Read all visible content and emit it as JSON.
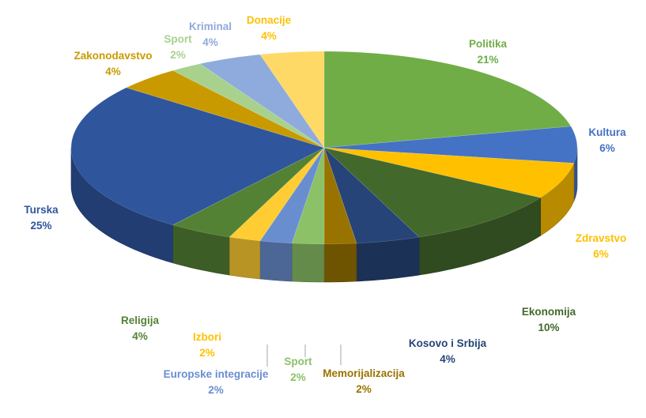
{
  "chart_data": {
    "type": "pie",
    "style": "3d",
    "title": "",
    "slices": [
      {
        "label": "Politika",
        "value": 21,
        "value_label": "21%",
        "color": "#70AD47"
      },
      {
        "label": "Kultura",
        "value": 6,
        "value_label": "6%",
        "color": "#4472C4"
      },
      {
        "label": "Zdravstvo",
        "value": 6,
        "value_label": "6%",
        "color": "#FFC000"
      },
      {
        "label": "Ekonomija",
        "value": 10,
        "value_label": "10%",
        "color": "#43682B"
      },
      {
        "label": "Kosovo i Srbija",
        "value": 4,
        "value_label": "4%",
        "color": "#264478"
      },
      {
        "label": "Memorijalizacija",
        "value": 2,
        "value_label": "2%",
        "color": "#997300"
      },
      {
        "label": "Sport",
        "value": 2,
        "value_label": "2%",
        "color": "#8CC168"
      },
      {
        "label": "Europske integracije",
        "value": 2,
        "value_label": "2%",
        "color": "#698ED0"
      },
      {
        "label": "Izbori",
        "value": 2,
        "value_label": "2%",
        "color": "#FFCD33"
      },
      {
        "label": "Religija",
        "value": 4,
        "value_label": "4%",
        "color": "#548235"
      },
      {
        "label": "Turska",
        "value": 25,
        "value_label": "25%",
        "color": "#2F559D"
      },
      {
        "label": "Zakonodavstvo",
        "value": 4,
        "value_label": "4%",
        "color": "#C99A00"
      },
      {
        "label": "Sport",
        "value": 2,
        "value_label": "2%",
        "color": "#A9D18E"
      },
      {
        "label": "Kriminal",
        "value": 4,
        "value_label": "4%",
        "color": "#8FAADC"
      },
      {
        "label": "Donacije",
        "value": 4,
        "value_label": "4%",
        "color": "#FFD966"
      }
    ]
  }
}
